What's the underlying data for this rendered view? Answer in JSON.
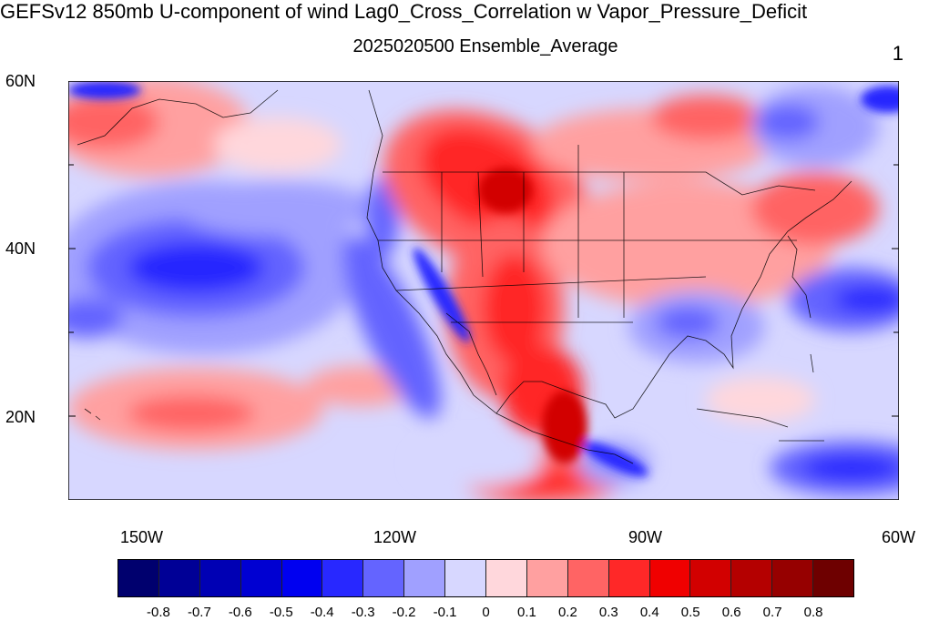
{
  "title": "GEFSv12 850mb U-component of wind Lag0_Cross_Correlation w Vapor_Pressure_Deficit",
  "subtitle": "2025020500 Ensemble_Average",
  "panel_number": "1",
  "axes": {
    "lat_labels": [
      "60N",
      "40N",
      "20N"
    ],
    "lon_labels": [
      "150W",
      "120W",
      "90W",
      "60W"
    ]
  },
  "colorbar": {
    "labels": [
      "-0.8",
      "-0.7",
      "-0.6",
      "-0.5",
      "-0.4",
      "-0.3",
      "-0.2",
      "-0.1",
      "0",
      "0.1",
      "0.2",
      "0.3",
      "0.4",
      "0.5",
      "0.6",
      "0.7",
      "0.8"
    ],
    "colors": [
      "#00006e",
      "#000096",
      "#0000b4",
      "#0000d2",
      "#0000f0",
      "#2828ff",
      "#6464ff",
      "#a0a0ff",
      "#d7d7ff",
      "#ffd7dc",
      "#ffa0a0",
      "#ff6464",
      "#ff2828",
      "#f00000",
      "#d20000",
      "#b40000",
      "#960000",
      "#6e0000"
    ]
  }
}
